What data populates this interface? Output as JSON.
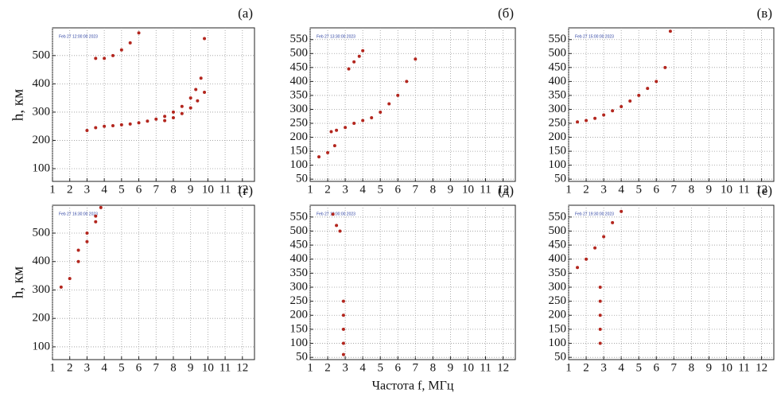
{
  "figure": {
    "y_label": "h, км",
    "x_label": "Частота f, МГц"
  },
  "chart_data": [
    {
      "type": "scatter",
      "label": "(а)",
      "annotation": "Feb 27 12:00:00 2023",
      "xlim": [
        1,
        12.7
      ],
      "ylim": [
        55,
        598
      ],
      "xticks": [
        1,
        2,
        3,
        4,
        5,
        6,
        7,
        8,
        9,
        10,
        11,
        12
      ],
      "yticks": [
        100,
        200,
        300,
        400,
        500
      ],
      "grid": true,
      "series": [
        {
          "color": "#b3261e",
          "x": [
            3,
            3.5,
            4,
            4.5,
            5,
            5.5,
            6,
            6.5,
            7,
            7.5,
            8,
            8.5,
            9,
            9.3,
            9.6,
            9.8
          ],
          "y": [
            235,
            245,
            250,
            252,
            255,
            258,
            262,
            268,
            275,
            285,
            300,
            320,
            350,
            380,
            420,
            560
          ]
        },
        {
          "color": "#b3261e",
          "x": [
            7.5,
            8,
            8.5,
            9,
            9.4,
            9.8
          ],
          "y": [
            270,
            280,
            295,
            315,
            340,
            370
          ]
        },
        {
          "color": "#b3261e",
          "x": [
            3.5,
            4,
            4.5,
            5,
            5.5,
            6
          ],
          "y": [
            490,
            490,
            500,
            520,
            545,
            580
          ]
        }
      ]
    },
    {
      "type": "scatter",
      "label": "(б)",
      "annotation": "Feb 27 13:30:00 2023",
      "xlim": [
        1,
        12.7
      ],
      "ylim": [
        42,
        592
      ],
      "xticks": [
        1,
        2,
        3,
        4,
        5,
        6,
        7,
        8,
        9,
        10,
        11,
        12
      ],
      "yticks": [
        50,
        100,
        150,
        200,
        250,
        300,
        350,
        400,
        450,
        500,
        550
      ],
      "grid": true,
      "series": [
        {
          "color": "#b3261e",
          "x": [
            2.2,
            2.5,
            3,
            3.5,
            4,
            4.5,
            5,
            5.5,
            6,
            6.5,
            7
          ],
          "y": [
            220,
            225,
            235,
            250,
            260,
            270,
            290,
            320,
            350,
            400,
            480
          ]
        },
        {
          "color": "#b3261e",
          "x": [
            1.5,
            2,
            2.4
          ],
          "y": [
            130,
            145,
            170
          ]
        },
        {
          "color": "#b3261e",
          "x": [
            3.2,
            3.5,
            3.8,
            4
          ],
          "y": [
            445,
            470,
            490,
            510
          ]
        }
      ]
    },
    {
      "type": "scatter",
      "label": "(в)",
      "annotation": "Feb 27 15:00:00 2023",
      "xlim": [
        1,
        12.7
      ],
      "ylim": [
        42,
        592
      ],
      "xticks": [
        1,
        2,
        3,
        4,
        5,
        6,
        7,
        8,
        9,
        10,
        11,
        12
      ],
      "yticks": [
        50,
        100,
        150,
        200,
        250,
        300,
        350,
        400,
        450,
        500,
        550
      ],
      "grid": true,
      "series": [
        {
          "color": "#b3261e",
          "x": [
            1.5,
            2,
            2.5,
            3,
            3.5,
            4,
            4.5,
            5,
            5.5,
            6,
            6.5,
            6.8
          ],
          "y": [
            255,
            260,
            268,
            280,
            295,
            310,
            330,
            350,
            375,
            400,
            450,
            580
          ]
        }
      ]
    },
    {
      "type": "scatter",
      "label": "(г)",
      "annotation": "Feb 27 16:30:00 2023",
      "xlim": [
        1,
        12.7
      ],
      "ylim": [
        55,
        598
      ],
      "xticks": [
        1,
        2,
        3,
        4,
        5,
        6,
        7,
        8,
        9,
        10,
        11,
        12
      ],
      "yticks": [
        100,
        200,
        300,
        400,
        500
      ],
      "grid": true,
      "series": [
        {
          "color": "#b3261e",
          "x": [
            1.5,
            2,
            2.5,
            3,
            3.5,
            3.8
          ],
          "y": [
            310,
            340,
            400,
            470,
            540,
            590
          ]
        },
        {
          "color": "#b3261e",
          "x": [
            2.5,
            3,
            3.5
          ],
          "y": [
            440,
            500,
            560
          ]
        }
      ]
    },
    {
      "type": "scatter",
      "label": "(д)",
      "annotation": "Feb 27 18:00:00 2023",
      "xlim": [
        1,
        12.7
      ],
      "ylim": [
        42,
        592
      ],
      "xticks": [
        1,
        2,
        3,
        4,
        5,
        6,
        7,
        8,
        9,
        10,
        11,
        12
      ],
      "yticks": [
        50,
        100,
        150,
        200,
        250,
        300,
        350,
        400,
        450,
        500,
        550
      ],
      "grid": true,
      "series": [
        {
          "color": "#b3261e",
          "x": [
            2.3,
            2.5,
            2.7
          ],
          "y": [
            560,
            520,
            500
          ]
        },
        {
          "color": "#b3261e",
          "x": [
            2.9,
            2.9,
            2.9,
            2.9,
            2.9
          ],
          "y": [
            60,
            100,
            150,
            200,
            250
          ]
        }
      ]
    },
    {
      "type": "scatter",
      "label": "(е)",
      "annotation": "Feb 27 19:30:00 2023",
      "xlim": [
        1,
        12.7
      ],
      "ylim": [
        42,
        592
      ],
      "xticks": [
        1,
        2,
        3,
        4,
        5,
        6,
        7,
        8,
        9,
        10,
        11,
        12
      ],
      "yticks": [
        50,
        100,
        150,
        200,
        250,
        300,
        350,
        400,
        450,
        500,
        550
      ],
      "grid": true,
      "series": [
        {
          "color": "#b3261e",
          "x": [
            1.5,
            2,
            2.5,
            3,
            3.5,
            4
          ],
          "y": [
            370,
            400,
            440,
            480,
            530,
            570
          ]
        },
        {
          "color": "#b3261e",
          "x": [
            2.8,
            2.8,
            2.8,
            2.8,
            2.8
          ],
          "y": [
            100,
            150,
            200,
            250,
            300
          ]
        }
      ]
    }
  ]
}
